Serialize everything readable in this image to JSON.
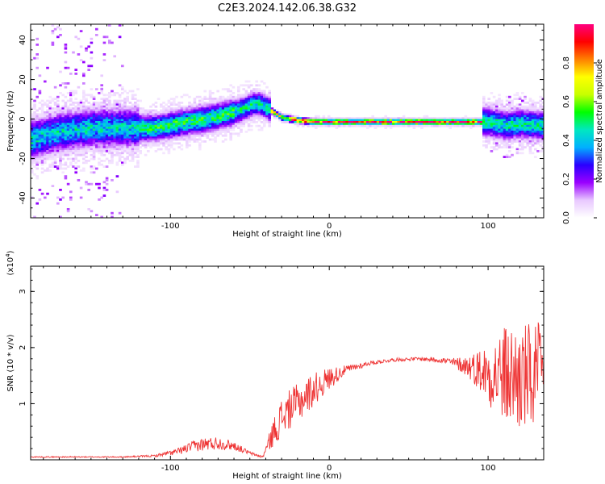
{
  "title": "C2E3.2024.142.06.38.G32",
  "chart_data": [
    {
      "type": "heatmap",
      "xlabel": "Height of straight line (km)",
      "ylabel": "Frequency (Hz)",
      "xlim": [
        -188,
        135
      ],
      "ylim": [
        -50,
        48
      ],
      "xticks": [
        -100,
        0,
        100
      ],
      "yticks": [
        -40,
        -20,
        0,
        20,
        40
      ],
      "ridge": {
        "x": [
          -188,
          -170,
          -150,
          -130,
          -110,
          -90,
          -75,
          -60,
          -48,
          -44,
          -38,
          -30,
          -22,
          -10,
          0,
          20,
          50,
          80,
          90,
          100,
          110,
          120,
          135
        ],
        "freq": [
          -10,
          -6,
          -4,
          -4,
          -4,
          -1,
          1,
          4,
          8,
          8,
          5,
          1,
          0,
          -1,
          -1,
          -1,
          -1,
          -1,
          -1,
          -1,
          -3,
          -2,
          -3
        ]
      },
      "colorbar": {
        "label": "Normalized spectral amplitude",
        "range": [
          0.0,
          1.0
        ],
        "ticks": [
          "0.0",
          "0.2",
          "0.4",
          "0.6",
          "0.8"
        ],
        "colormap": [
          "#ffffff",
          "#e8c8ff",
          "#9a00ff",
          "#2a00ff",
          "#00b0ff",
          "#00e8c0",
          "#00ff00",
          "#c8ff00",
          "#ffff00",
          "#ff8000",
          "#ff0000",
          "#ff0080"
        ]
      }
    },
    {
      "type": "line",
      "xlabel": "Height of straight line (km)",
      "ylabel": "SNR (10 * v/v)",
      "y_multiplier": "(x10",
      "y_multiplier_exp": "4",
      "y_multiplier_close": ")",
      "xlim": [
        -188,
        135
      ],
      "ylim": [
        0,
        3.45
      ],
      "xticks": [
        -100,
        0,
        100
      ],
      "yticks": [
        1,
        2,
        3
      ],
      "color": "#ee3333",
      "series": [
        {
          "x": [
            -188,
            -160,
            -130,
            -110,
            -95,
            -85,
            -78,
            -70,
            -60,
            -50,
            -42,
            -35,
            -30,
            -25,
            -18,
            -10,
            0,
            10,
            25,
            40,
            55,
            70,
            80,
            90,
            100,
            110,
            120,
            135
          ],
          "y": [
            0.05,
            0.05,
            0.05,
            0.07,
            0.15,
            0.25,
            0.28,
            0.3,
            0.25,
            0.12,
            0.05,
            0.5,
            0.75,
            0.9,
            1.05,
            1.25,
            1.45,
            1.6,
            1.72,
            1.78,
            1.8,
            1.78,
            1.72,
            1.65,
            1.55,
            1.5,
            1.45,
            1.45
          ],
          "amplitude": [
            0.01,
            0.01,
            0.01,
            0.02,
            0.06,
            0.1,
            0.12,
            0.12,
            0.08,
            0.03,
            0.02,
            0.25,
            0.35,
            0.35,
            0.35,
            0.3,
            0.2,
            0.08,
            0.04,
            0.03,
            0.03,
            0.05,
            0.1,
            0.25,
            0.55,
            0.9,
            1.0,
            1.0
          ]
        }
      ]
    }
  ]
}
